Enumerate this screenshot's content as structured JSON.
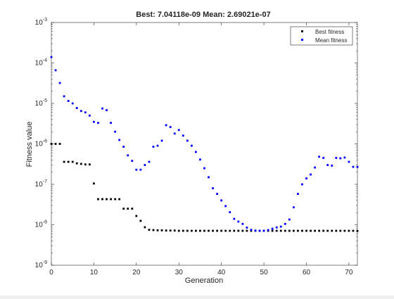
{
  "chart_data": {
    "type": "scatter",
    "title": "Best: 7.04118e-09 Mean: 2.69021e-07",
    "xlabel": "Generation",
    "ylabel": "Fitness value",
    "xlim": [
      0,
      72
    ],
    "ylim": [
      1e-09,
      0.001
    ],
    "yscale": "log",
    "xticks": [
      0,
      10,
      20,
      30,
      40,
      50,
      60,
      70
    ],
    "yticks": [
      {
        "value": 1e-09,
        "base": "10",
        "exp": "-9"
      },
      {
        "value": 1e-08,
        "base": "10",
        "exp": "-8"
      },
      {
        "value": 1e-07,
        "base": "10",
        "exp": "-7"
      },
      {
        "value": 1e-06,
        "base": "10",
        "exp": "-6"
      },
      {
        "value": 1e-05,
        "base": "10",
        "exp": "-5"
      },
      {
        "value": 0.0001,
        "base": "10",
        "exp": "-4"
      },
      {
        "value": 0.001,
        "base": "10",
        "exp": "-3"
      }
    ],
    "grid": false,
    "legend_position": "top-right",
    "series": [
      {
        "name": "Best fitness",
        "color": "#000000",
        "x": [
          0,
          1,
          2,
          3,
          4,
          5,
          6,
          7,
          8,
          9,
          10,
          11,
          12,
          13,
          14,
          15,
          16,
          17,
          18,
          19,
          20,
          21,
          22,
          23,
          24,
          25,
          26,
          27,
          28,
          29,
          30,
          31,
          32,
          33,
          34,
          35,
          36,
          37,
          38,
          39,
          40,
          41,
          42,
          43,
          44,
          45,
          46,
          47,
          48,
          49,
          50,
          51,
          52,
          53,
          54,
          55,
          56,
          57,
          58,
          59,
          60,
          61,
          62,
          63,
          64,
          65,
          66,
          67,
          68,
          69,
          70,
          71,
          72
        ],
        "y": [
          1e-06,
          1e-06,
          1e-06,
          3.6e-07,
          3.6e-07,
          3.6e-07,
          3.3e-07,
          3.2e-07,
          3.1e-07,
          3.1e-07,
          1.05e-07,
          4.3e-08,
          4.3e-08,
          4.3e-08,
          4.3e-08,
          4.3e-08,
          4.3e-08,
          2.5e-08,
          2.5e-08,
          2.5e-08,
          1.65e-08,
          1.25e-08,
          8.7e-09,
          7.5e-09,
          7.4e-09,
          7.3e-09,
          7.3e-09,
          7.2e-09,
          7.2e-09,
          7.2e-09,
          7.1e-09,
          7.1e-09,
          7.1e-09,
          7.1e-09,
          7.1e-09,
          7.1e-09,
          7.1e-09,
          7.1e-09,
          7.1e-09,
          7.1e-09,
          7.1e-09,
          7.1e-09,
          7.1e-09,
          7.1e-09,
          7.1e-09,
          7.1e-09,
          7.1e-09,
          7.1e-09,
          7.1e-09,
          7.1e-09,
          7.1e-09,
          7.1e-09,
          7.1e-09,
          7.1e-09,
          7.1e-09,
          7.1e-09,
          7.1e-09,
          7.1e-09,
          7.1e-09,
          7.1e-09,
          7.1e-09,
          7.1e-09,
          7.1e-09,
          7.1e-09,
          7.1e-09,
          7.1e-09,
          7.1e-09,
          7.1e-09,
          7.1e-09,
          7.1e-09,
          7.1e-09,
          7.1e-09,
          7.04e-09
        ]
      },
      {
        "name": "Mean fitness",
        "color": "#0000ff",
        "x": [
          0,
          1,
          2,
          3,
          4,
          5,
          6,
          7,
          8,
          9,
          10,
          11,
          12,
          13,
          14,
          15,
          16,
          17,
          18,
          19,
          20,
          21,
          22,
          23,
          24,
          25,
          26,
          27,
          28,
          29,
          30,
          31,
          32,
          33,
          34,
          35,
          36,
          37,
          38,
          39,
          40,
          41,
          42,
          43,
          44,
          45,
          46,
          47,
          48,
          49,
          50,
          51,
          52,
          53,
          54,
          55,
          56,
          57,
          58,
          59,
          60,
          61,
          62,
          63,
          64,
          65,
          66,
          67,
          68,
          69,
          70,
          71,
          72
        ],
        "y": [
          0.00014,
          6.6e-05,
          3.2e-05,
          1.5e-05,
          1.15e-05,
          1e-05,
          7.7e-06,
          6.5e-06,
          6e-06,
          5e-06,
          3.5e-06,
          3.3e-06,
          7.5e-06,
          6.8e-06,
          3.3e-06,
          2e-06,
          1.25e-06,
          8.5e-07,
          5.2e-07,
          3.8e-07,
          2.3e-07,
          2.3e-07,
          3e-07,
          3.6e-07,
          8.5e-07,
          9e-07,
          1.2e-06,
          2.9e-06,
          2.6e-06,
          1.8e-06,
          2.2e-06,
          1.6e-06,
          1.2e-06,
          9e-07,
          6.3e-07,
          4.1e-07,
          2.5e-07,
          1.5e-07,
          8e-08,
          5.8e-08,
          4e-08,
          2.9e-08,
          2.05e-08,
          1.4e-08,
          1.2e-08,
          1.05e-08,
          8.5e-09,
          7.5e-09,
          7.2e-09,
          7.1e-09,
          7.1e-09,
          7.4e-09,
          8e-09,
          8.6e-09,
          9e-09,
          1.05e-08,
          1.35e-08,
          2.7e-08,
          5.8e-08,
          1e-07,
          1.4e-07,
          1.75e-07,
          2.6e-07,
          4.8e-07,
          4.5e-07,
          3e-07,
          2.9e-07,
          4.5e-07,
          4.4e-07,
          4.6e-07,
          3.6e-07,
          2.7e-07,
          2.69e-07
        ]
      }
    ]
  }
}
